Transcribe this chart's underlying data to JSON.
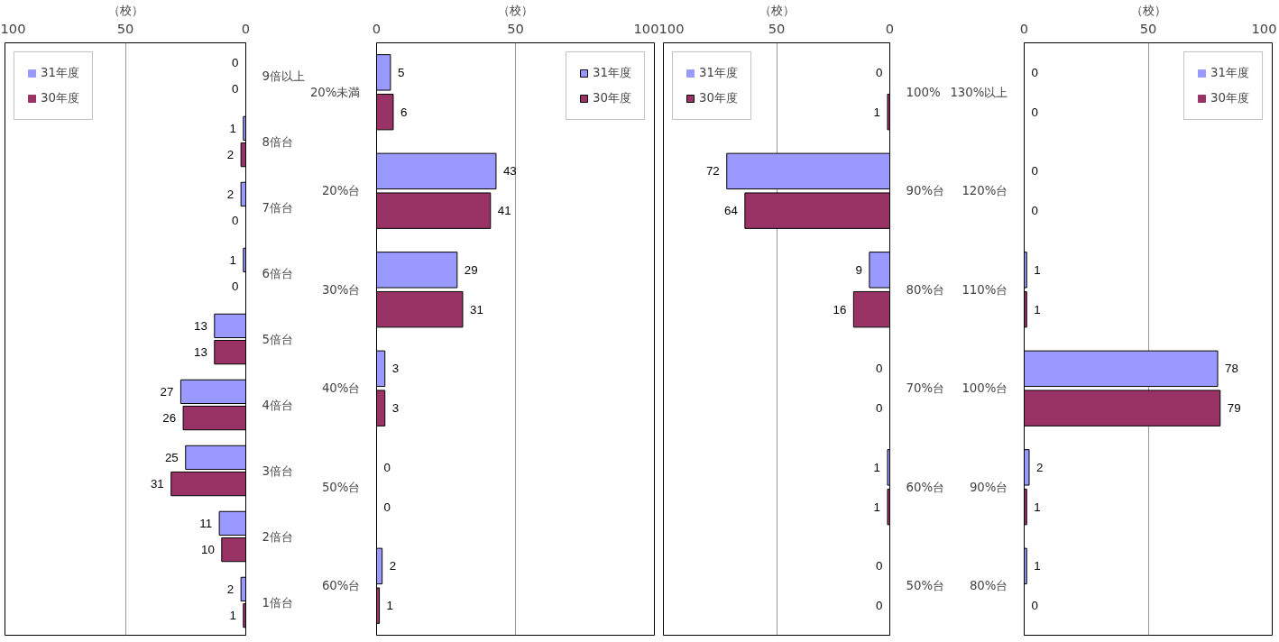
{
  "chart_data": [
    {
      "type": "bar",
      "orientation": "horizontal",
      "xlabel": "（校）",
      "categories": [
        "9倍以上",
        "8倍台",
        "7倍台",
        "6倍台",
        "5倍台",
        "4倍台",
        "3倍台",
        "2倍台",
        "1倍台"
      ],
      "xlim": [
        100,
        0
      ],
      "xticks": [
        100,
        50,
        0
      ],
      "grid": "x",
      "legend": "top left",
      "data_labels": true,
      "series": [
        {
          "name": "31年度",
          "color": "#9999ff",
          "values": [
            0,
            1,
            2,
            1,
            13,
            27,
            25,
            11,
            2
          ]
        },
        {
          "name": "30年度",
          "color": "#993366",
          "values": [
            0,
            2,
            0,
            0,
            13,
            26,
            31,
            10,
            1
          ]
        }
      ]
    },
    {
      "type": "bar",
      "orientation": "horizontal",
      "xlabel": "（校）",
      "categories": [
        "20%未満",
        "20%台",
        "30%台",
        "40%台",
        "50%台",
        "60%台"
      ],
      "xlim": [
        0,
        100
      ],
      "xticks": [
        0,
        50,
        100
      ],
      "grid": "x",
      "legend": "top right",
      "data_labels": true,
      "series": [
        {
          "name": "31年度",
          "color": "#9999ff",
          "values": [
            5,
            43,
            29,
            3,
            0,
            2
          ]
        },
        {
          "name": "30年度",
          "color": "#993366",
          "values": [
            6,
            41,
            31,
            3,
            0,
            1
          ]
        }
      ]
    },
    {
      "type": "bar",
      "orientation": "horizontal",
      "xlabel": "（校）",
      "categories": [
        "100%",
        "90%台",
        "80%台",
        "70%台",
        "60%台",
        "50%台"
      ],
      "xlim": [
        100,
        0
      ],
      "xticks": [
        100,
        50,
        0
      ],
      "grid": "x",
      "legend": "top left",
      "data_labels": true,
      "series": [
        {
          "name": "31年度",
          "color": "#9999ff",
          "values": [
            0,
            72,
            9,
            0,
            1,
            0
          ]
        },
        {
          "name": "30年度",
          "color": "#993366",
          "values": [
            1,
            64,
            16,
            0,
            1,
            0
          ]
        }
      ]
    },
    {
      "type": "bar",
      "orientation": "horizontal",
      "xlabel": "（校）",
      "categories": [
        "130%以上",
        "120%台",
        "110%台",
        "100%台",
        "90%台",
        "80%台"
      ],
      "xlim": [
        0,
        100
      ],
      "xticks": [
        0,
        50,
        100
      ],
      "grid": "x",
      "legend": "top right",
      "data_labels": true,
      "series": [
        {
          "name": "31年度",
          "color": "#9999ff",
          "values": [
            0,
            0,
            1,
            78,
            2,
            1
          ]
        },
        {
          "name": "30年度",
          "color": "#993366",
          "values": [
            0,
            0,
            1,
            79,
            1,
            0
          ]
        }
      ]
    }
  ]
}
